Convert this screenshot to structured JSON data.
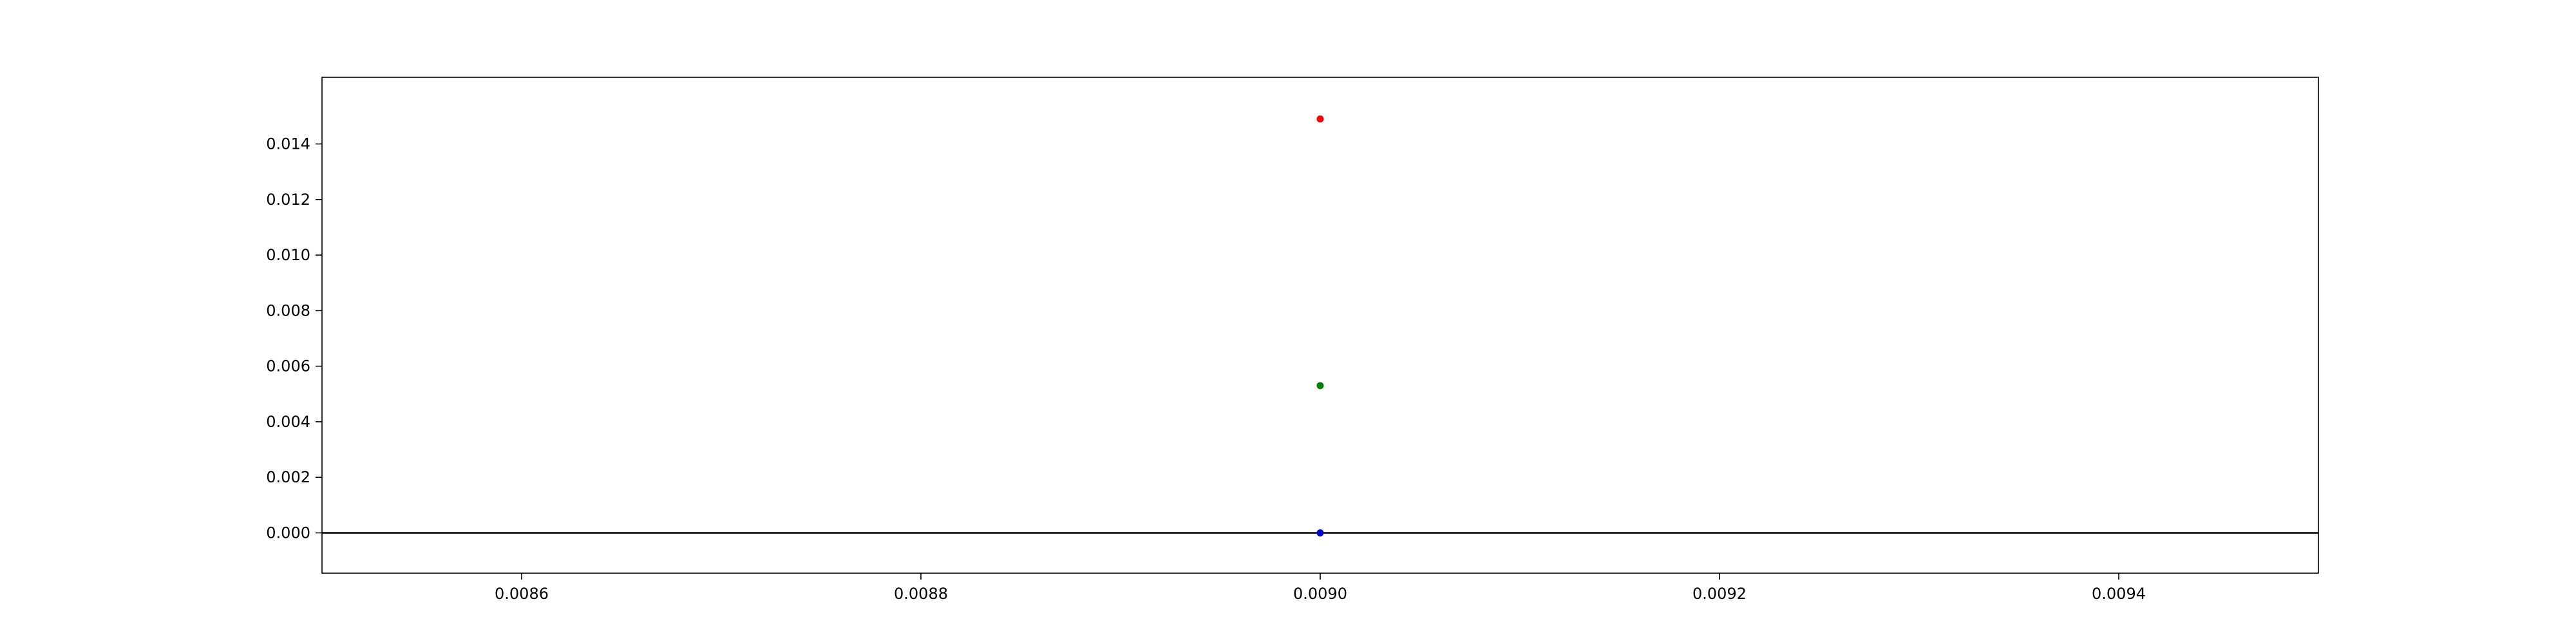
{
  "chart_data": {
    "type": "scatter",
    "title": "",
    "xlabel": "",
    "ylabel": "",
    "xlim": [
      0.0085,
      0.0095
    ],
    "ylim": [
      -0.00145,
      0.0164
    ],
    "grid": false,
    "legend": null,
    "x_ticks": [
      "0.0086",
      "0.0088",
      "0.0090",
      "0.0092",
      "0.0094"
    ],
    "x_tick_values": [
      0.0086,
      0.0088,
      0.009,
      0.0092,
      0.0094
    ],
    "y_ticks": [
      "0.000",
      "0.002",
      "0.004",
      "0.006",
      "0.008",
      "0.010",
      "0.012",
      "0.014"
    ],
    "y_tick_values": [
      0.0,
      0.002,
      0.004,
      0.006,
      0.008,
      0.01,
      0.012,
      0.014
    ],
    "hline": {
      "y": 0,
      "color": "#000000"
    },
    "series": [
      {
        "x": [
          0.009
        ],
        "y": [
          0.0149
        ],
        "color": "#ff0000"
      },
      {
        "x": [
          0.009
        ],
        "y": [
          0.0053
        ],
        "color": "#008000"
      },
      {
        "x": [
          0.009
        ],
        "y": [
          0.0
        ],
        "color": "#0000cd"
      }
    ]
  }
}
